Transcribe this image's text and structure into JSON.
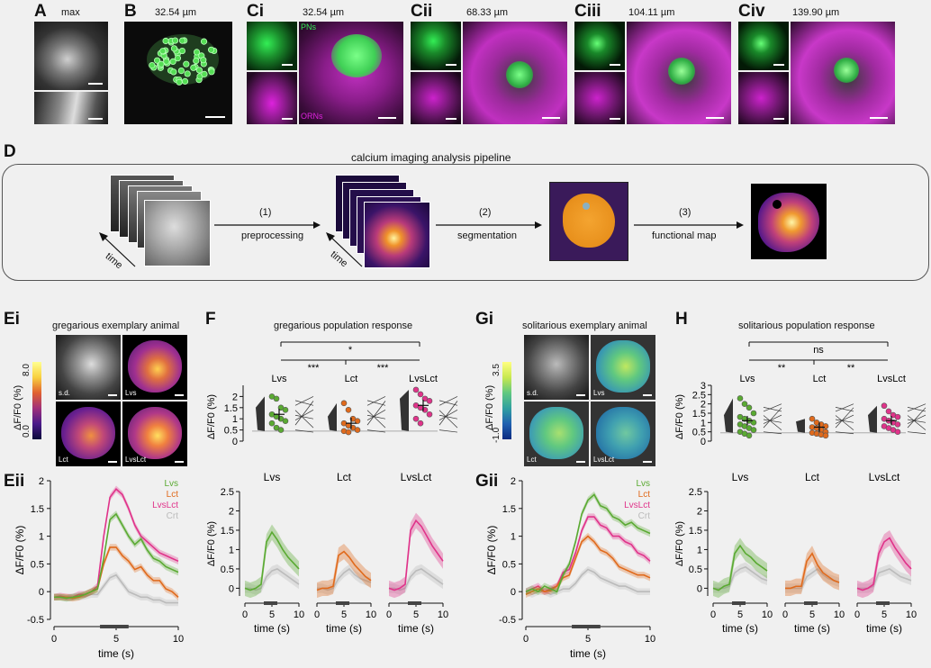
{
  "panels": {
    "A": {
      "label": "A",
      "note": "max"
    },
    "B": {
      "label": "B",
      "depth": "32.54 µm"
    },
    "Ci": {
      "label": "Ci",
      "depth": "32.54 µm",
      "pn_label": "PNs",
      "orn_label": "ORNs"
    },
    "Cii": {
      "label": "Cii",
      "depth": "68.33 µm"
    },
    "Ciii": {
      "label": "Ciii",
      "depth": "104.11 µm"
    },
    "Civ": {
      "label": "Civ",
      "depth": "139.90 µm"
    },
    "D": {
      "label": "D",
      "title": "calcium imaging analysis pipeline",
      "steps": [
        {
          "num": "(1)",
          "name": "preprocessing"
        },
        {
          "num": "(2)",
          "name": "segmentation"
        },
        {
          "num": "(3)",
          "name": "functional map"
        }
      ],
      "time_label": "time"
    },
    "Ei": {
      "label": "Ei",
      "title": "gregarious exemplary animal",
      "cbar_label": "ΔF/F0 (%)",
      "cbar_min": "0.0",
      "cbar_max": "8.0",
      "tiles": [
        "s.d.",
        "Lvs",
        "Lct",
        "LvsLct"
      ]
    },
    "Gi": {
      "label": "Gi",
      "title": "solitarious exemplary animal",
      "cbar_label": "ΔF/F0 (%)",
      "cbar_min": "-1.0",
      "cbar_max": "3.5",
      "tiles": [
        "s.d.",
        "Lvs",
        "Lct",
        "LvsLct"
      ]
    },
    "Eii": {
      "label": "Eii"
    },
    "Gii": {
      "label": "Gii"
    },
    "F": {
      "label": "F",
      "title": "gregarious population response",
      "sig": [
        "*",
        "***",
        "***"
      ]
    },
    "H": {
      "label": "H",
      "title": "solitarious population response",
      "sig": [
        "ns",
        "**",
        "**"
      ]
    }
  },
  "colors": {
    "Lvs": "#5aaa32",
    "Lct": "#e06a1c",
    "LvsLct": "#e0338a",
    "Crt": "#bbbbbb",
    "pn": "#33ee55",
    "orn": "#dd22dd"
  },
  "chart_data": [
    {
      "id": "Eii",
      "type": "line",
      "ylabel": "ΔF/F0 (%)",
      "xlabel": "time (s)",
      "xlim": [
        0,
        10
      ],
      "ylim": [
        -0.5,
        2
      ],
      "yticks": [
        "-0.5",
        "0",
        "0.5",
        "1",
        "1.5",
        "2"
      ],
      "xticks": [
        "0",
        "5",
        "10"
      ],
      "legend": [
        "Lvs",
        "Lct",
        "LvsLct",
        "Crt"
      ],
      "x": [
        0,
        0.5,
        1,
        1.5,
        2,
        2.5,
        3,
        3.5,
        4,
        4.5,
        5,
        5.5,
        6,
        6.5,
        7,
        7.5,
        8,
        8.5,
        9,
        9.5,
        10
      ],
      "series": [
        {
          "name": "Lvs",
          "values": [
            -0.1,
            -0.1,
            -0.12,
            -0.1,
            -0.08,
            -0.05,
            0.0,
            0.05,
            0.6,
            1.3,
            1.4,
            1.2,
            1.0,
            0.85,
            0.95,
            0.75,
            0.6,
            0.55,
            0.45,
            0.4,
            0.35
          ]
        },
        {
          "name": "Lct",
          "values": [
            -0.1,
            -0.1,
            -0.1,
            -0.12,
            -0.1,
            -0.05,
            0.0,
            0.05,
            0.5,
            0.8,
            0.8,
            0.65,
            0.55,
            0.4,
            0.45,
            0.3,
            0.2,
            0.2,
            0.05,
            0.0,
            -0.1
          ]
        },
        {
          "name": "LvsLct",
          "values": [
            -0.1,
            -0.08,
            -0.1,
            -0.1,
            -0.05,
            -0.05,
            0.0,
            0.1,
            1.0,
            1.7,
            1.85,
            1.75,
            1.5,
            1.2,
            1.0,
            0.9,
            0.8,
            0.7,
            0.65,
            0.6,
            0.55
          ]
        },
        {
          "name": "Crt",
          "values": [
            -0.1,
            -0.1,
            -0.12,
            -0.1,
            -0.1,
            -0.08,
            -0.05,
            -0.05,
            0.1,
            0.25,
            0.3,
            0.15,
            0.0,
            -0.05,
            -0.1,
            -0.1,
            -0.15,
            -0.15,
            -0.2,
            -0.2,
            -0.2
          ]
        }
      ]
    },
    {
      "id": "Gii",
      "type": "line",
      "ylabel": "ΔF/F0 (%)",
      "xlabel": "time (s)",
      "xlim": [
        0,
        10
      ],
      "ylim": [
        -0.5,
        2
      ],
      "yticks": [
        "-0.5",
        "0",
        "0.5",
        "1",
        "1.5",
        "2"
      ],
      "xticks": [
        "0",
        "5",
        "10"
      ],
      "legend": [
        "Lvs",
        "Lct",
        "LvsLct",
        "Crt"
      ],
      "x": [
        0,
        0.5,
        1,
        1.5,
        2,
        2.5,
        3,
        3.5,
        4,
        4.5,
        5,
        5.5,
        6,
        6.5,
        7,
        7.5,
        8,
        8.5,
        9,
        9.5,
        10
      ],
      "series": [
        {
          "name": "Lvs",
          "values": [
            0.0,
            0.05,
            0.0,
            0.1,
            0.05,
            0.0,
            0.3,
            0.5,
            0.9,
            1.4,
            1.65,
            1.75,
            1.55,
            1.5,
            1.35,
            1.3,
            1.2,
            1.25,
            1.15,
            1.1,
            1.05
          ]
        },
        {
          "name": "Lct",
          "values": [
            -0.05,
            0.0,
            0.05,
            0.0,
            0.02,
            0.1,
            0.25,
            0.3,
            0.6,
            0.9,
            1.0,
            0.9,
            0.75,
            0.7,
            0.6,
            0.45,
            0.4,
            0.35,
            0.3,
            0.3,
            0.25
          ]
        },
        {
          "name": "LvsLct",
          "values": [
            0.0,
            0.05,
            0.1,
            0.0,
            0.05,
            0.1,
            0.35,
            0.4,
            0.7,
            1.1,
            1.35,
            1.35,
            1.2,
            1.15,
            1.0,
            1.0,
            0.9,
            0.85,
            0.7,
            0.65,
            0.55
          ]
        },
        {
          "name": "Crt",
          "values": [
            0.0,
            -0.05,
            0.0,
            0.0,
            -0.05,
            0.0,
            0.05,
            0.05,
            0.15,
            0.3,
            0.4,
            0.35,
            0.25,
            0.2,
            0.15,
            0.1,
            0.1,
            0.05,
            0.0,
            0.0,
            0.0
          ]
        }
      ]
    },
    {
      "id": "F",
      "type": "scatter",
      "ylabel": "ΔF/F0 (%)",
      "ylim": [
        0,
        2.5
      ],
      "yticks": [
        "0",
        "0.5",
        "1",
        "1.5",
        "2"
      ],
      "groups": [
        {
          "name": "Lvs",
          "mean": 1.2,
          "values": [
            2.0,
            1.9,
            1.5,
            1.4,
            1.2,
            1.1,
            1.0,
            0.9,
            0.8,
            0.6,
            0.5
          ]
        },
        {
          "name": "Lct",
          "mean": 0.8,
          "values": [
            1.7,
            1.4,
            1.0,
            0.9,
            0.8,
            0.7,
            0.6,
            0.5,
            0.45,
            0.4
          ]
        },
        {
          "name": "LvsLct",
          "mean": 1.6,
          "values": [
            2.3,
            2.1,
            1.9,
            1.8,
            1.6,
            1.5,
            1.4,
            1.2,
            1.0,
            0.8
          ]
        }
      ]
    },
    {
      "id": "H",
      "type": "scatter",
      "ylabel": "ΔF/F0 (%)",
      "ylim": [
        0,
        3
      ],
      "yticks": [
        "0",
        "0.5",
        "1",
        "1.5",
        "2",
        "2.5",
        "3"
      ],
      "groups": [
        {
          "name": "Lvs",
          "mean": 1.1,
          "values": [
            2.3,
            2.0,
            1.8,
            1.5,
            1.3,
            1.2,
            1.1,
            1.0,
            0.9,
            0.8,
            0.7,
            0.6,
            0.5,
            0.4,
            0.3
          ]
        },
        {
          "name": "Lct",
          "mean": 0.75,
          "values": [
            1.2,
            1.0,
            0.9,
            0.8,
            0.75,
            0.7,
            0.6,
            0.5,
            0.45,
            0.4,
            0.35,
            0.3
          ]
        },
        {
          "name": "LvsLct",
          "mean": 1.1,
          "values": [
            1.9,
            1.6,
            1.4,
            1.3,
            1.2,
            1.1,
            1.0,
            0.9,
            0.8,
            0.7,
            0.6,
            0.5
          ]
        }
      ]
    },
    {
      "id": "F-traces",
      "type": "line",
      "xlabel": "time (s)",
      "ylabel": "ΔF/F0 (%)",
      "ylim": [
        -0.2,
        2.5
      ],
      "yticks": [
        "0",
        "0.5",
        "1",
        "1.5",
        "2",
        "2.5"
      ],
      "xticks": [
        "0",
        "5",
        "10"
      ],
      "x": [
        0,
        1,
        2,
        3,
        4,
        5,
        6,
        7,
        8,
        9,
        10
      ],
      "panels": [
        {
          "name": "Lvs",
          "values": [
            0,
            -0.05,
            0,
            0.1,
            1.2,
            1.45,
            1.25,
            1.0,
            0.8,
            0.65,
            0.5
          ],
          "ctrl": [
            0,
            0,
            -0.05,
            0,
            0.3,
            0.45,
            0.5,
            0.4,
            0.3,
            0.2,
            0.1
          ]
        },
        {
          "name": "Lct",
          "values": [
            -0.05,
            0,
            0,
            0.05,
            0.85,
            0.95,
            0.8,
            0.6,
            0.45,
            0.3,
            0.2
          ],
          "ctrl": [
            0,
            0,
            -0.05,
            0,
            0.25,
            0.4,
            0.5,
            0.35,
            0.25,
            0.2,
            0.15
          ]
        },
        {
          "name": "LvsLct",
          "values": [
            0,
            -0.05,
            0,
            0.1,
            1.5,
            1.75,
            1.6,
            1.35,
            1.1,
            0.9,
            0.7
          ],
          "ctrl": [
            0,
            0,
            -0.05,
            0,
            0.3,
            0.45,
            0.5,
            0.4,
            0.3,
            0.2,
            0.1
          ]
        }
      ]
    },
    {
      "id": "H-traces",
      "type": "line",
      "xlabel": "time (s)",
      "ylabel": "ΔF/F0 (%)",
      "ylim": [
        -0.2,
        2.5
      ],
      "yticks": [
        "0",
        "0.5",
        "1",
        "1.5",
        "2",
        "2.5"
      ],
      "xticks": [
        "0",
        "5",
        "10"
      ],
      "x": [
        0,
        1,
        2,
        3,
        4,
        5,
        6,
        7,
        8,
        9,
        10
      ],
      "panels": [
        {
          "name": "Lvs",
          "values": [
            0,
            -0.05,
            0.05,
            0.1,
            0.9,
            1.1,
            0.9,
            0.8,
            0.65,
            0.55,
            0.45
          ],
          "ctrl": [
            0,
            0,
            0,
            0.05,
            0.4,
            0.5,
            0.55,
            0.45,
            0.35,
            0.25,
            0.2
          ]
        },
        {
          "name": "Lct",
          "values": [
            0,
            0,
            0.05,
            0.05,
            0.7,
            0.9,
            0.6,
            0.4,
            0.3,
            0.2,
            0.15
          ],
          "ctrl": [
            0,
            0,
            0,
            0,
            0.3,
            0.4,
            0.5,
            0.35,
            0.25,
            0.2,
            0.15
          ]
        },
        {
          "name": "LvsLct",
          "values": [
            0,
            -0.05,
            0,
            0.1,
            0.9,
            1.2,
            1.3,
            1.05,
            0.85,
            0.65,
            0.5
          ],
          "ctrl": [
            0,
            0,
            0,
            0.05,
            0.4,
            0.45,
            0.5,
            0.4,
            0.3,
            0.25,
            0.2
          ]
        }
      ]
    }
  ]
}
